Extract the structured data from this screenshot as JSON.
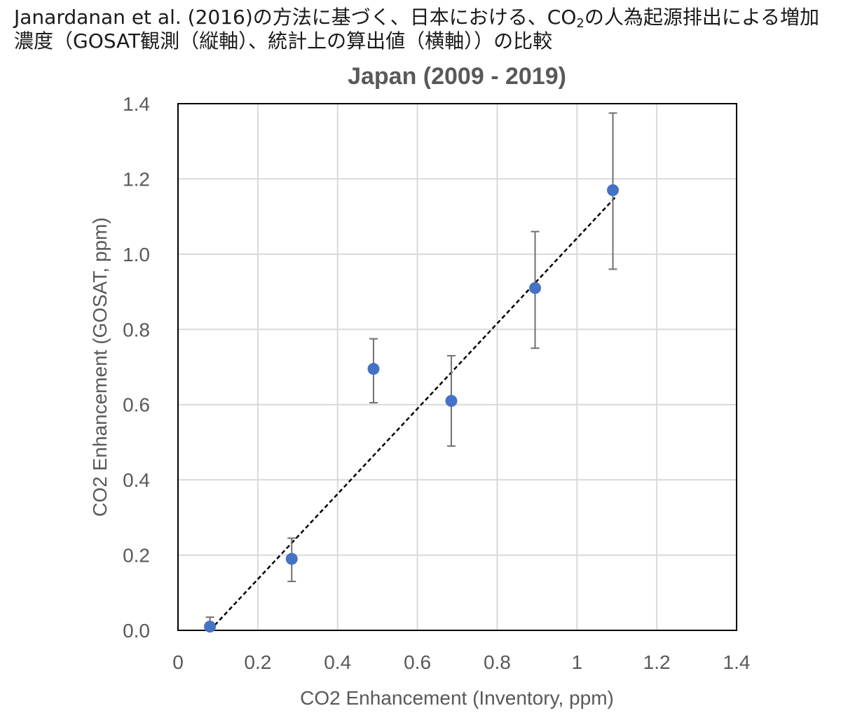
{
  "caption": {
    "part1": "Janardanan et al. (2016)の方法に基づく、日本における、CO",
    "subscript": "2",
    "part2": "の人為起源排出による増加濃度（GOSAT観測（縦軸）、統計上の算出値（横軸））の比較"
  },
  "chart_data": {
    "type": "scatter",
    "title": "Japan (2009 - 2019)",
    "xlabel": "CO2 Enhancement (Inventory, ppm)",
    "ylabel": "CO2 Enhancement (GOSAT, ppm)",
    "xlim": [
      0,
      1.4
    ],
    "ylim": [
      0,
      1.4
    ],
    "x_ticks": [
      0,
      0.2,
      0.4,
      0.6,
      0.8,
      1.0,
      1.2,
      1.4
    ],
    "x_tick_labels": [
      "0",
      "0.2",
      "0.4",
      "0.6",
      "0.8",
      "1",
      "1.2",
      "1.4"
    ],
    "y_ticks": [
      0,
      0.2,
      0.4,
      0.6,
      0.8,
      1.0,
      1.2,
      1.4
    ],
    "y_tick_labels": [
      "0.0",
      "0.2",
      "0.4",
      "0.6",
      "0.8",
      "1.0",
      "1.2",
      "1.4"
    ],
    "grid": true,
    "legend": "none",
    "points": [
      {
        "x": 0.08,
        "y": 0.01,
        "err_low": 0.0,
        "err_high": 0.035
      },
      {
        "x": 0.285,
        "y": 0.19,
        "err_low": 0.13,
        "err_high": 0.245
      },
      {
        "x": 0.49,
        "y": 0.695,
        "err_low": 0.605,
        "err_high": 0.775
      },
      {
        "x": 0.685,
        "y": 0.61,
        "err_low": 0.49,
        "err_high": 0.73
      },
      {
        "x": 0.895,
        "y": 0.91,
        "err_low": 0.75,
        "err_high": 1.06
      },
      {
        "x": 1.09,
        "y": 1.17,
        "err_low": 0.96,
        "err_high": 1.375
      }
    ],
    "fit_line": {
      "x": [
        0.08,
        1.095
      ],
      "y": [
        0.0,
        1.15
      ]
    },
    "colors": {
      "point": "#4472c4",
      "errorbar": "#707070",
      "fit_line": "#000000",
      "grid": "#d9d9d9",
      "axes_frame": "#000000",
      "text": "#595959"
    }
  }
}
